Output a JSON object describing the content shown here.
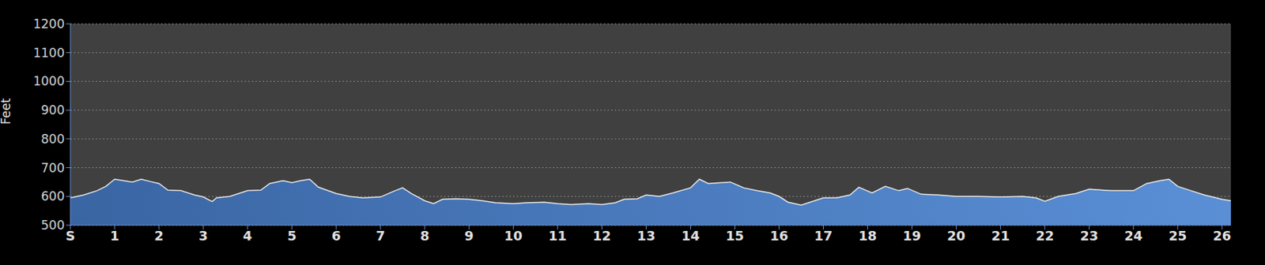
{
  "chart_data": {
    "type": "area",
    "y_label": "Feet",
    "color": "#4a7cc0",
    "grid": true,
    "x": [
      0,
      0.3,
      0.6,
      0.8,
      1.0,
      1.2,
      1.4,
      1.6,
      1.8,
      2.0,
      2.2,
      2.5,
      2.8,
      3.0,
      3.2,
      3.3,
      3.6,
      4.0,
      4.3,
      4.5,
      4.8,
      5.0,
      5.2,
      5.4,
      5.6,
      6.0,
      6.3,
      6.6,
      7.0,
      7.3,
      7.5,
      7.7,
      8.0,
      8.2,
      8.4,
      8.7,
      9.0,
      9.3,
      9.6,
      10.0,
      10.3,
      10.7,
      11.0,
      11.3,
      11.7,
      12.0,
      12.3,
      12.5,
      12.8,
      13.0,
      13.3,
      13.6,
      14.0,
      14.2,
      14.4,
      14.7,
      14.9,
      15.2,
      15.5,
      15.8,
      16.0,
      16.2,
      16.5,
      16.8,
      17.0,
      17.3,
      17.6,
      17.8,
      18.1,
      18.4,
      18.7,
      18.9,
      19.2,
      19.6,
      20.0,
      20.5,
      21.0,
      21.5,
      21.8,
      22.0,
      22.3,
      22.7,
      23.0,
      23.5,
      24.0,
      24.3,
      24.6,
      24.8,
      25.0,
      25.3,
      25.6,
      26.0,
      26.2
    ],
    "values": [
      595,
      605,
      620,
      635,
      660,
      655,
      650,
      660,
      652,
      645,
      622,
      620,
      605,
      598,
      582,
      595,
      600,
      620,
      622,
      645,
      655,
      648,
      655,
      660,
      632,
      610,
      600,
      595,
      598,
      618,
      630,
      610,
      585,
      575,
      590,
      592,
      590,
      585,
      578,
      575,
      578,
      580,
      575,
      572,
      575,
      572,
      578,
      590,
      592,
      605,
      600,
      612,
      630,
      660,
      645,
      648,
      650,
      630,
      620,
      612,
      600,
      580,
      570,
      585,
      595,
      595,
      605,
      632,
      612,
      635,
      620,
      628,
      608,
      605,
      600,
      600,
      598,
      600,
      595,
      583,
      600,
      610,
      625,
      620,
      620,
      645,
      655,
      660,
      635,
      620,
      605,
      590,
      585
    ],
    "xlim": [
      0,
      26.2
    ],
    "xticks": [
      {
        "value": 0,
        "label": "S"
      },
      1,
      2,
      3,
      4,
      5,
      6,
      7,
      8,
      9,
      10,
      11,
      12,
      13,
      14,
      15,
      16,
      17,
      18,
      19,
      20,
      21,
      22,
      23,
      24,
      25,
      26
    ],
    "ylim": [
      500,
      1200
    ],
    "yticks": [
      500,
      600,
      700,
      800,
      900,
      1000,
      1100,
      1200
    ]
  }
}
